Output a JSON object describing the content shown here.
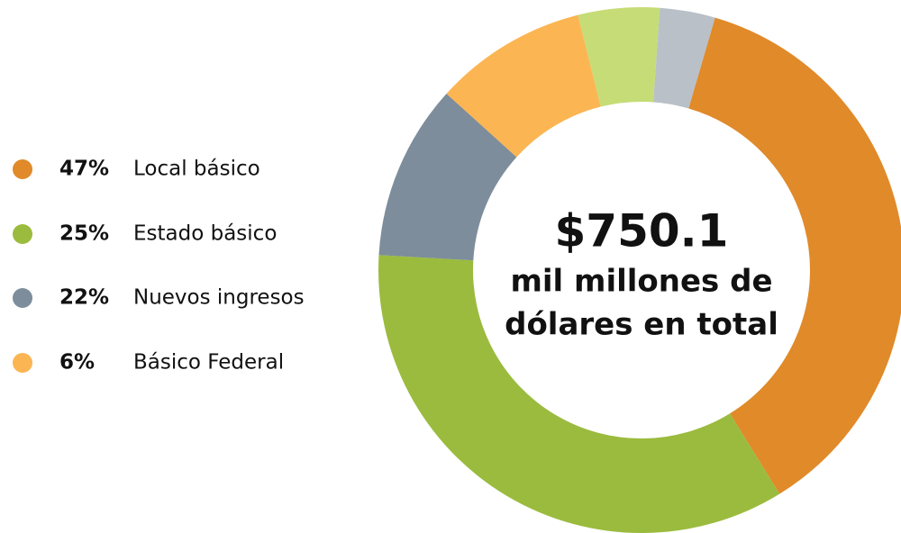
{
  "chart_data": {
    "type": "donut",
    "values": [
      3.4,
      36.7,
      34.7,
      10.8,
      9.4,
      5.0
    ],
    "colors": [
      "#b9c0c8",
      "#e08a2a",
      "#9bbb3e",
      "#7d8d9b",
      "#fbb552",
      "#c6dc76"
    ],
    "center_text": [
      "$750.1",
      "mil millones de",
      "dólares en total"
    ],
    "legend": {
      "names": [
        "Local básico",
        "Estado básico",
        "Nuevos ingresos",
        "Básico Federal"
      ],
      "values": [
        47,
        25,
        22,
        6
      ],
      "value_labels": [
        "47%",
        "25%",
        "22%",
        "6%"
      ],
      "colors": [
        "#e08a2a",
        "#9bbb3e",
        "#7d8d9b",
        "#fbb552"
      ]
    }
  }
}
